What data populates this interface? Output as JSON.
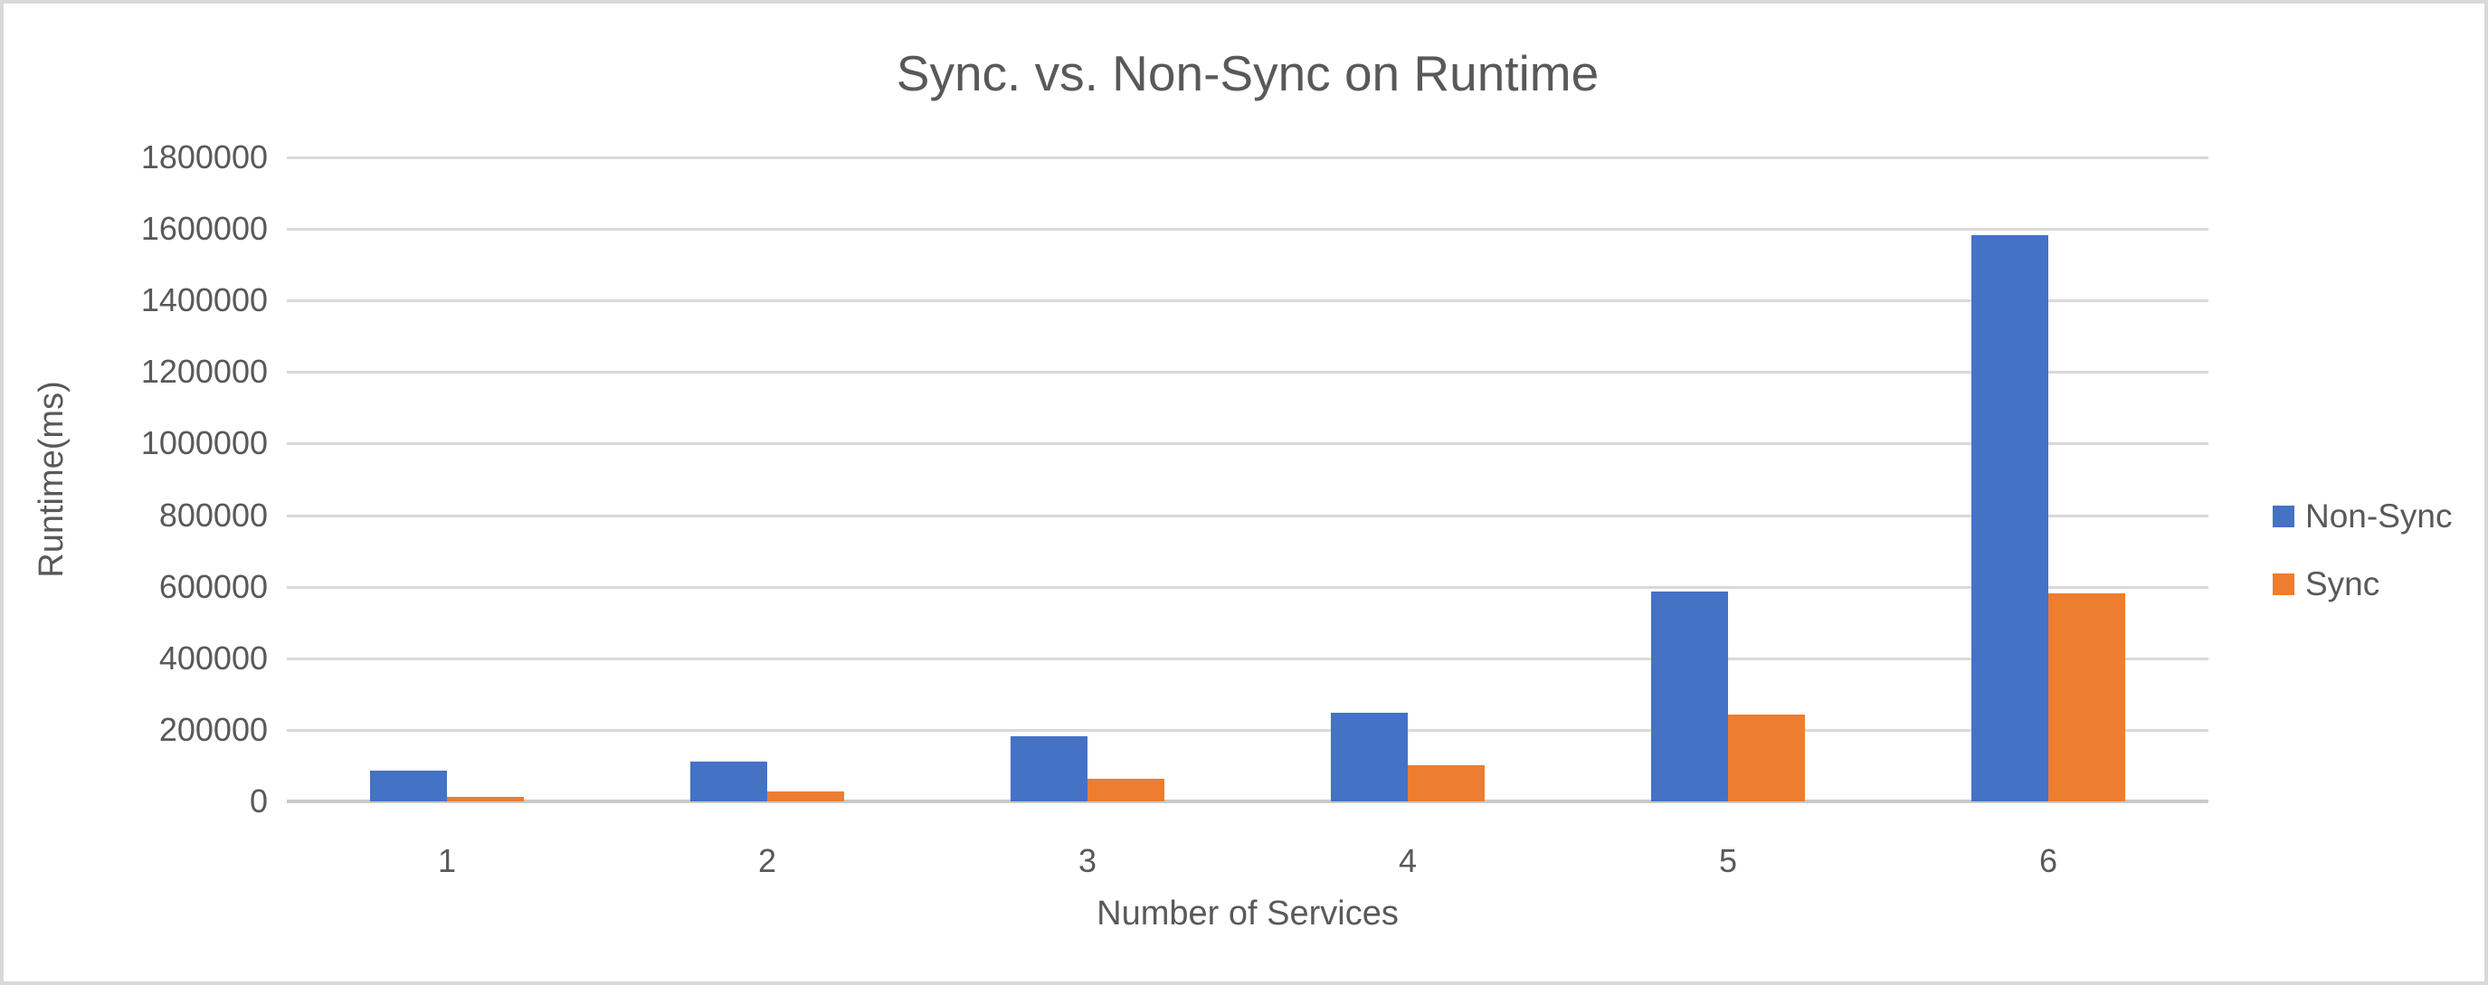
{
  "chart_data": {
    "type": "bar",
    "title": "Sync. vs. Non-Sync on Runtime",
    "xlabel": "Number of Services",
    "ylabel": "Runtime(ms)",
    "categories": [
      "1",
      "2",
      "3",
      "4",
      "5",
      "6"
    ],
    "series": [
      {
        "name": "Non-Sync",
        "color": "#4472C4",
        "values": [
          85000,
          112000,
          182000,
          249000,
          587000,
          1582000
        ]
      },
      {
        "name": "Sync",
        "color": "#ED7D31",
        "values": [
          13000,
          29000,
          64000,
          100000,
          243000,
          581000
        ]
      }
    ],
    "ylim": [
      0,
      1800000
    ],
    "yticks": [
      0,
      200000,
      400000,
      600000,
      800000,
      1000000,
      1200000,
      1400000,
      1600000,
      1800000
    ],
    "grid": true,
    "legend_position": "right",
    "grid_color": "#D9D9D9",
    "axis_line_color": "#C9C9C9",
    "text_color": "#595959"
  }
}
